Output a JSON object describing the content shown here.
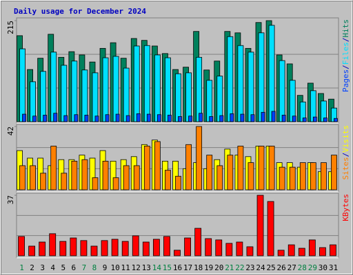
{
  "chart_data": [
    {
      "type": "bar",
      "title": "Daily usage for December 2024",
      "ylim": [
        0,
        215
      ],
      "yticks": [
        215
      ],
      "legend_separator": "/",
      "series": [
        {
          "name": "Hits",
          "color": "#00805c",
          "values": [
            183,
            111,
            135,
            186,
            137,
            149,
            142,
            127,
            156,
            168,
            135,
            177,
            173,
            161,
            145,
            111,
            116,
            192,
            110,
            129,
            192,
            189,
            156,
            211,
            215,
            142,
            123,
            56,
            82,
            60,
            48
          ]
        },
        {
          "name": "Files",
          "color": "#00e0ff",
          "values": [
            155,
            85,
            107,
            148,
            120,
            129,
            110,
            104,
            136,
            139,
            114,
            161,
            162,
            142,
            136,
            102,
            104,
            137,
            88,
            97,
            181,
            162,
            148,
            189,
            205,
            130,
            88,
            42,
            66,
            44,
            29
          ]
        },
        {
          "name": "Pages",
          "color": "#0040ff",
          "values": [
            16,
            12,
            14,
            18,
            13,
            15,
            14,
            12,
            15,
            16,
            13,
            17,
            16,
            15,
            14,
            11,
            12,
            18,
            11,
            13,
            17,
            16,
            15,
            20,
            22,
            14,
            12,
            8,
            10,
            8,
            7
          ]
        }
      ]
    },
    {
      "type": "bar",
      "ylim": [
        0,
        42
      ],
      "yticks": [
        42
      ],
      "legend_separator": "/",
      "series": [
        {
          "name": "Visits",
          "color": "#ffff00",
          "values": [
            26,
            21,
            21,
            16,
            20,
            20,
            23,
            21,
            26,
            19,
            20,
            22,
            30,
            33,
            19,
            19,
            14,
            18,
            14,
            20,
            27,
            23,
            22,
            29,
            29,
            18,
            18,
            15,
            18,
            12,
            12
          ]
        },
        {
          "name": "Sites",
          "color": "#ff8000",
          "values": [
            16,
            16,
            11,
            29,
            11,
            19,
            20,
            8,
            19,
            8,
            16,
            16,
            29,
            32,
            13,
            9,
            30,
            42,
            23,
            16,
            23,
            29,
            18,
            29,
            29,
            15,
            15,
            18,
            18,
            18,
            23
          ]
        }
      ]
    },
    {
      "type": "bar",
      "ylim": [
        0,
        37
      ],
      "yticks": [
        37
      ],
      "weekend_color": "#008040",
      "categories": [
        "1",
        "2",
        "3",
        "4",
        "5",
        "6",
        "7",
        "8",
        "9",
        "10",
        "11",
        "12",
        "13",
        "14",
        "15",
        "16",
        "17",
        "18",
        "19",
        "20",
        "21",
        "22",
        "23",
        "24",
        "25",
        "26",
        "27",
        "28",
        "29",
        "30",
        "31"
      ],
      "weekend": [
        true,
        false,
        false,
        false,
        false,
        false,
        true,
        true,
        false,
        false,
        false,
        false,
        false,
        true,
        true,
        false,
        false,
        false,
        false,
        false,
        true,
        true,
        false,
        false,
        false,
        false,
        false,
        true,
        true,
        false,
        false
      ],
      "series": [
        {
          "name": "KBytes",
          "color": "#ff0000",
          "values": [
            11.8,
            5.9,
            8.4,
            13.5,
            8.8,
            10.9,
            9.3,
            5.9,
            9.3,
            10.1,
            8.8,
            12.2,
            8.4,
            10.1,
            11.8,
            3.4,
            10.9,
            16.8,
            10.5,
            9.7,
            7.6,
            8.4,
            5.5,
            37,
            33.2,
            3.4,
            6.7,
            4.6,
            9.7,
            5,
            6.7
          ]
        }
      ]
    }
  ]
}
